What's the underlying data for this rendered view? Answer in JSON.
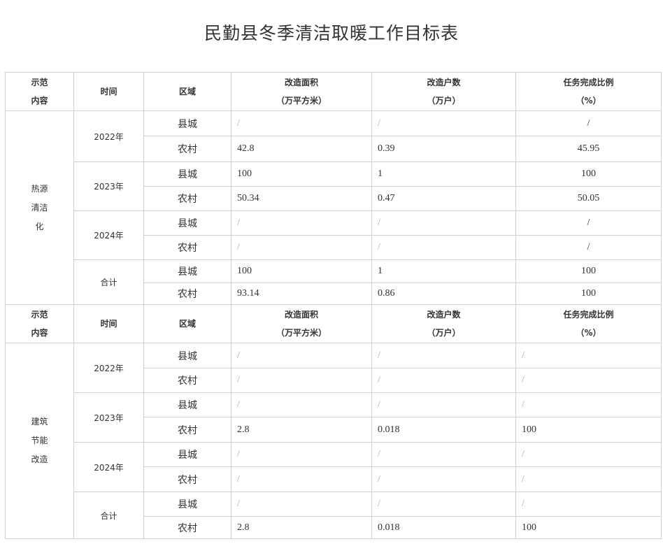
{
  "title": "民勤县冬季清洁取暖工作目标表",
  "header": {
    "col1": [
      "示范",
      "内容"
    ],
    "col2": "时间",
    "col3": "区域",
    "col4": [
      "改造面积",
      "（万平方米）"
    ],
    "col5": [
      "改造户数",
      "（万户）"
    ],
    "col6": [
      "任务完成比例",
      "（%）"
    ]
  },
  "sections": [
    {
      "name": [
        "热源",
        "清洁",
        "化"
      ],
      "pct_align": "center",
      "groups": [
        {
          "period": "2022年",
          "rows": [
            {
              "area": "县城",
              "size": "/",
              "households": "/",
              "pct": "/"
            },
            {
              "area": "农村",
              "size": "42.8",
              "households": "0.39",
              "pct": "45.95"
            }
          ]
        },
        {
          "period": "2023年",
          "rows": [
            {
              "area": "县城",
              "size": "100",
              "households": "1",
              "pct": "100"
            },
            {
              "area": "农村",
              "size": "50.34",
              "households": "0.47",
              "pct": "50.05"
            }
          ]
        },
        {
          "period": "2024年",
          "rows": [
            {
              "area": "县城",
              "size": "/",
              "households": "/",
              "pct": "/"
            },
            {
              "area": "农村",
              "size": "/",
              "households": "/",
              "pct": "/"
            }
          ]
        },
        {
          "period": "合计",
          "rows": [
            {
              "area": "县城",
              "size": "100",
              "households": "1",
              "pct": "100"
            },
            {
              "area": "农村",
              "size": "93.14",
              "households": "0.86",
              "pct": "100"
            }
          ]
        }
      ]
    },
    {
      "name": [
        "建筑",
        "节能",
        "改造"
      ],
      "pct_align": "left",
      "groups": [
        {
          "period": "2022年",
          "rows": [
            {
              "area": "县城",
              "size": "/",
              "households": "/",
              "pct": "/"
            },
            {
              "area": "农村",
              "size": "/",
              "households": "/",
              "pct": "/"
            }
          ]
        },
        {
          "period": "2023年",
          "rows": [
            {
              "area": "县城",
              "size": "/",
              "households": "/",
              "pct": "/"
            },
            {
              "area": "农村",
              "size": "2.8",
              "households": "0.018",
              "pct": "100"
            }
          ]
        },
        {
          "period": "2024年",
          "rows": [
            {
              "area": "县城",
              "size": "/",
              "households": "/",
              "pct": "/"
            },
            {
              "area": "农村",
              "size": "/",
              "households": "/",
              "pct": "/"
            }
          ]
        },
        {
          "period": "合计",
          "rows": [
            {
              "area": "县城",
              "size": "/",
              "households": "/",
              "pct": "/"
            },
            {
              "area": "农村",
              "size": "2.8",
              "households": "0.018",
              "pct": "100"
            }
          ]
        }
      ]
    }
  ]
}
